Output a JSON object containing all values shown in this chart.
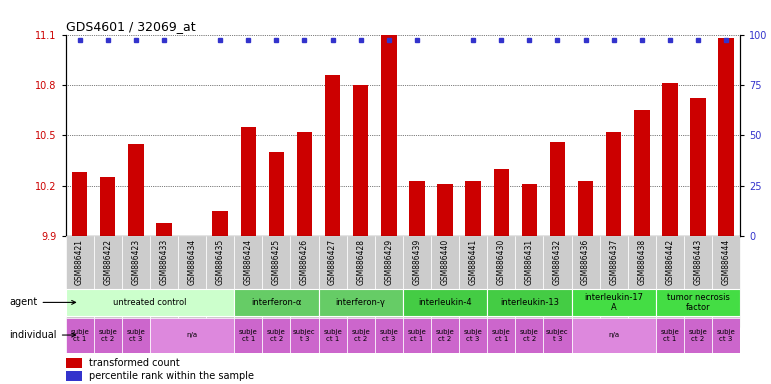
{
  "title": "GDS4601 / 32069_at",
  "samples": [
    "GSM886421",
    "GSM886422",
    "GSM886423",
    "GSM886433",
    "GSM886434",
    "GSM886435",
    "GSM886424",
    "GSM886425",
    "GSM886426",
    "GSM886427",
    "GSM886428",
    "GSM886429",
    "GSM886439",
    "GSM886440",
    "GSM886441",
    "GSM886430",
    "GSM886431",
    "GSM886432",
    "GSM886436",
    "GSM886437",
    "GSM886438",
    "GSM886442",
    "GSM886443",
    "GSM886444"
  ],
  "values": [
    10.28,
    10.25,
    10.45,
    9.98,
    9.9,
    10.05,
    10.55,
    10.4,
    10.52,
    10.86,
    10.8,
    11.1,
    10.23,
    10.21,
    10.23,
    10.3,
    10.21,
    10.46,
    10.23,
    10.52,
    10.65,
    10.81,
    10.72,
    11.08
  ],
  "percentile_100": [
    true,
    true,
    true,
    true,
    false,
    true,
    true,
    true,
    true,
    true,
    true,
    true,
    true,
    false,
    true,
    true,
    true,
    true,
    true,
    true,
    true,
    true,
    true,
    true
  ],
  "ylim_left": [
    9.9,
    11.1
  ],
  "ylim_right": [
    0,
    100
  ],
  "yticks_left": [
    9.9,
    10.2,
    10.5,
    10.8,
    11.1
  ],
  "yticks_right": [
    0,
    25,
    50,
    75,
    100
  ],
  "bar_color": "#cc0000",
  "dot_color": "#3333cc",
  "agent_groups": [
    {
      "label": "untreated control",
      "start": 0,
      "end": 5,
      "color": "#ccffcc"
    },
    {
      "label": "interferon-α",
      "start": 6,
      "end": 8,
      "color": "#66cc66"
    },
    {
      "label": "interferon-γ",
      "start": 9,
      "end": 11,
      "color": "#66cc66"
    },
    {
      "label": "interleukin-4",
      "start": 12,
      "end": 14,
      "color": "#44cc44"
    },
    {
      "label": "interleukin-13",
      "start": 15,
      "end": 17,
      "color": "#44cc44"
    },
    {
      "label": "interleukin-17\nA",
      "start": 18,
      "end": 20,
      "color": "#44dd44"
    },
    {
      "label": "tumor necrosis\nfactor",
      "start": 21,
      "end": 23,
      "color": "#44dd44"
    }
  ],
  "individual_groups": [
    {
      "label": "subje\nct 1",
      "start": 0,
      "end": 0,
      "color": "#cc66cc"
    },
    {
      "label": "subje\nct 2",
      "start": 1,
      "end": 1,
      "color": "#cc66cc"
    },
    {
      "label": "subje\nct 3",
      "start": 2,
      "end": 2,
      "color": "#cc66cc"
    },
    {
      "label": "n/a",
      "start": 3,
      "end": 5,
      "color": "#dd88dd"
    },
    {
      "label": "subje\nct 1",
      "start": 6,
      "end": 6,
      "color": "#cc66cc"
    },
    {
      "label": "subje\nct 2",
      "start": 7,
      "end": 7,
      "color": "#cc66cc"
    },
    {
      "label": "subjec\nt 3",
      "start": 8,
      "end": 8,
      "color": "#cc66cc"
    },
    {
      "label": "subje\nct 1",
      "start": 9,
      "end": 9,
      "color": "#cc66cc"
    },
    {
      "label": "subje\nct 2",
      "start": 10,
      "end": 10,
      "color": "#cc66cc"
    },
    {
      "label": "subje\nct 3",
      "start": 11,
      "end": 11,
      "color": "#cc66cc"
    },
    {
      "label": "subje\nct 1",
      "start": 12,
      "end": 12,
      "color": "#cc66cc"
    },
    {
      "label": "subje\nct 2",
      "start": 13,
      "end": 13,
      "color": "#cc66cc"
    },
    {
      "label": "subje\nct 3",
      "start": 14,
      "end": 14,
      "color": "#cc66cc"
    },
    {
      "label": "subje\nct 1",
      "start": 15,
      "end": 15,
      "color": "#cc66cc"
    },
    {
      "label": "subje\nct 2",
      "start": 16,
      "end": 16,
      "color": "#cc66cc"
    },
    {
      "label": "subjec\nt 3",
      "start": 17,
      "end": 17,
      "color": "#cc66cc"
    },
    {
      "label": "n/a",
      "start": 18,
      "end": 20,
      "color": "#dd88dd"
    },
    {
      "label": "subje\nct 1",
      "start": 21,
      "end": 21,
      "color": "#cc66cc"
    },
    {
      "label": "subje\nct 2",
      "start": 22,
      "end": 22,
      "color": "#cc66cc"
    },
    {
      "label": "subje\nct 3",
      "start": 23,
      "end": 23,
      "color": "#cc66cc"
    }
  ],
  "left_tick_color": "#cc0000",
  "right_tick_color": "#3333cc",
  "background_color": "#ffffff",
  "grid_color": "#000000",
  "sample_bg_color": "#cccccc"
}
